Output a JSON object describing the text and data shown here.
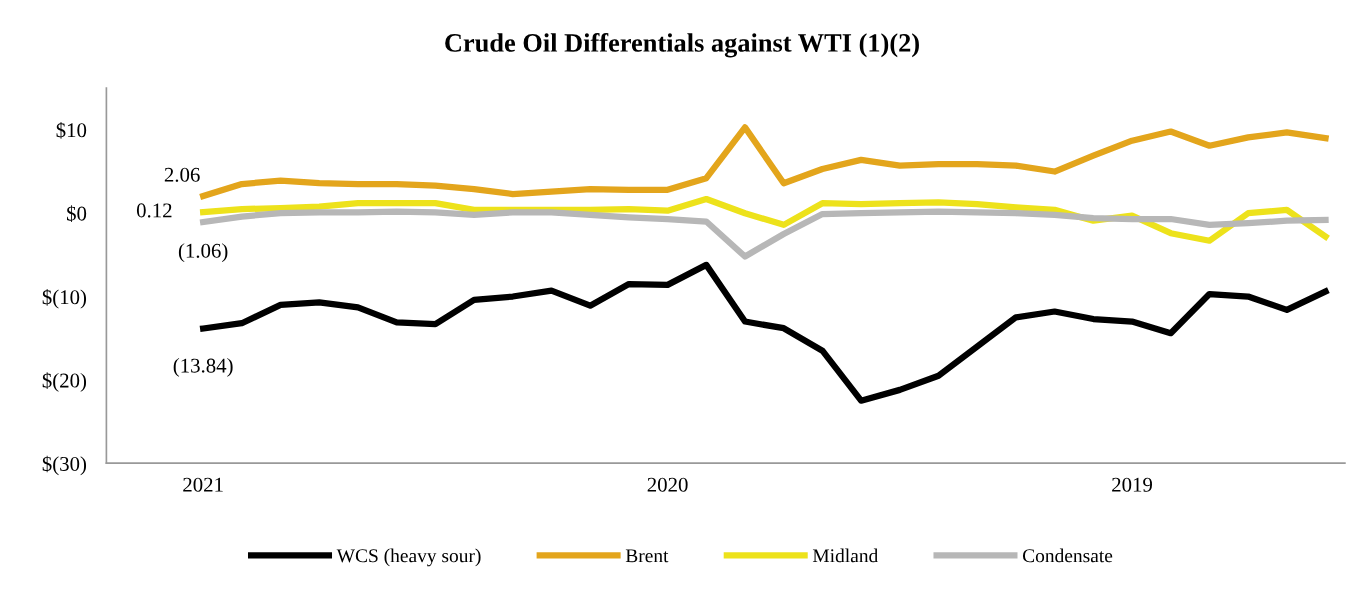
{
  "chart_data": {
    "type": "line",
    "title": "Crude Oil Differentials against WTI (1)(2)",
    "categories": [
      "2021",
      null,
      null,
      null,
      null,
      null,
      null,
      null,
      null,
      null,
      null,
      null,
      "2020",
      null,
      null,
      null,
      null,
      null,
      null,
      null,
      null,
      null,
      null,
      null,
      "2019",
      null,
      null,
      null,
      null,
      null
    ],
    "series": [
      {
        "name": "WCS (heavy sour)",
        "color": "#000000",
        "values": [
          -13.84,
          -13.2,
          -11.0,
          -10.7,
          -11.3,
          -13.1,
          -13.3,
          -10.4,
          -10.0,
          -9.3,
          -11.1,
          -8.5,
          -8.6,
          -6.2,
          -13.0,
          -13.8,
          -16.5,
          -22.5,
          -21.2,
          -19.5,
          -16.0,
          -12.5,
          -11.8,
          -12.7,
          -13.0,
          -14.4,
          -9.7,
          -10.0,
          -11.6,
          -9.4
        ],
        "value_labels": [
          "(13.84)",
          null,
          null,
          null,
          null,
          null,
          null,
          null,
          null,
          null,
          null,
          null,
          null,
          null,
          null,
          null,
          null,
          null,
          null,
          null,
          null,
          null,
          null,
          null,
          null,
          null,
          null,
          null,
          null,
          null
        ]
      },
      {
        "name": "Brent",
        "color": "#e3a51c",
        "values": [
          2.06,
          3.5,
          3.9,
          3.6,
          3.5,
          3.5,
          3.3,
          2.9,
          2.3,
          2.6,
          2.9,
          2.8,
          2.8,
          4.2,
          10.3,
          3.6,
          5.3,
          6.4,
          5.7,
          5.9,
          5.9,
          5.7,
          5.0,
          6.9,
          8.7,
          9.8,
          8.1,
          9.1,
          9.7,
          9.0
        ],
        "value_labels": [
          "2.06",
          null,
          null,
          null,
          null,
          null,
          null,
          null,
          null,
          null,
          null,
          null,
          null,
          null,
          null,
          null,
          null,
          null,
          null,
          null,
          null,
          null,
          null,
          null,
          null,
          null,
          null,
          null,
          null,
          null
        ]
      },
      {
        "name": "Midland",
        "color": "#ede21b",
        "values": [
          0.12,
          0.5,
          0.6,
          0.8,
          1.2,
          1.2,
          1.2,
          0.4,
          0.4,
          0.4,
          0.4,
          0.5,
          0.3,
          1.7,
          0.0,
          -1.4,
          1.2,
          1.1,
          1.2,
          1.3,
          1.1,
          0.7,
          0.4,
          -0.9,
          -0.3,
          -2.4,
          -3.3,
          0.0,
          0.4,
          -2.8
        ],
        "value_labels": [
          "0.12",
          null,
          null,
          null,
          null,
          null,
          null,
          null,
          null,
          null,
          null,
          null,
          null,
          null,
          null,
          null,
          null,
          null,
          null,
          null,
          null,
          null,
          null,
          null,
          null,
          null,
          null,
          null,
          null,
          null
        ]
      },
      {
        "name": "Condensate",
        "color": "#b7b7b7",
        "values": [
          -1.06,
          -0.4,
          0.0,
          0.1,
          0.1,
          0.2,
          0.1,
          -0.2,
          0.1,
          0.1,
          -0.2,
          -0.5,
          -0.7,
          -1.0,
          -5.2,
          -2.5,
          -0.1,
          0.0,
          0.1,
          0.2,
          0.1,
          0.0,
          -0.2,
          -0.6,
          -0.7,
          -0.7,
          -1.4,
          -1.2,
          -0.9,
          -0.8
        ],
        "value_labels": [
          "(1.06)",
          null,
          null,
          null,
          null,
          null,
          null,
          null,
          null,
          null,
          null,
          null,
          null,
          null,
          null,
          null,
          null,
          null,
          null,
          null,
          null,
          null,
          null,
          null,
          null,
          null,
          null,
          null,
          null,
          null
        ]
      }
    ],
    "ylim": [
      -30,
      15
    ],
    "yticks": [
      {
        "value": 10,
        "label": "$10"
      },
      {
        "value": 0,
        "label": "$0"
      },
      {
        "value": -10,
        "label": "$(10)"
      },
      {
        "value": -20,
        "label": "$(20)"
      },
      {
        "value": -30,
        "label": "$(30)"
      }
    ],
    "grid": false,
    "legend": "bottom",
    "marker": "none",
    "line_style": "solid"
  }
}
